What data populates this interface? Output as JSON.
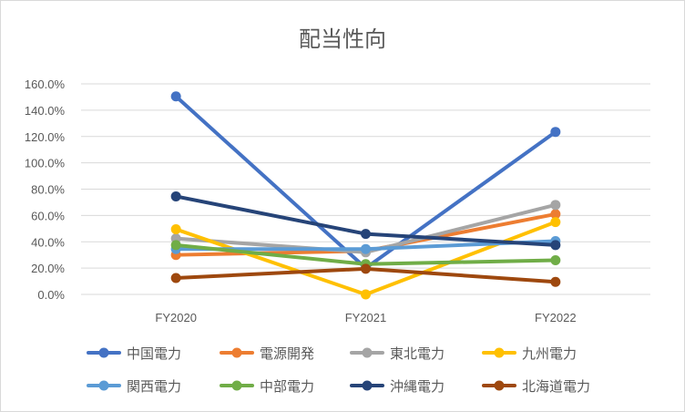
{
  "chart_data": {
    "type": "line",
    "title": "配当性向",
    "categories": [
      "FY2020",
      "FY2021",
      "FY2022"
    ],
    "ylim": [
      0,
      160
    ],
    "yticks": [
      "0.0%",
      "20.0%",
      "40.0%",
      "60.0%",
      "80.0%",
      "100.0%",
      "120.0%",
      "140.0%",
      "160.0%"
    ],
    "grid": true,
    "legend_position": "bottom",
    "series": [
      {
        "name": "中国電力",
        "values": [
          150.5,
          20.0,
          123.5
        ],
        "color": "#4472C4"
      },
      {
        "name": "電源開発",
        "values": [
          30.0,
          33.0,
          61.0
        ],
        "color": "#ED7D31"
      },
      {
        "name": "東北電力",
        "values": [
          42.5,
          32.0,
          68.0
        ],
        "color": "#A5A5A5"
      },
      {
        "name": "九州電力",
        "values": [
          49.5,
          0.0,
          55.0
        ],
        "color": "#FFC000"
      },
      {
        "name": "関西電力",
        "values": [
          34.5,
          34.5,
          40.5
        ],
        "color": "#5B9BD5"
      },
      {
        "name": "中部電力",
        "values": [
          37.5,
          23.0,
          26.0
        ],
        "color": "#70AD47"
      },
      {
        "name": "沖縄電力",
        "values": [
          74.5,
          46.0,
          37.5
        ],
        "color": "#264478"
      },
      {
        "name": "北海道電力",
        "values": [
          12.5,
          19.5,
          9.5
        ],
        "color": "#9E480E"
      }
    ]
  }
}
